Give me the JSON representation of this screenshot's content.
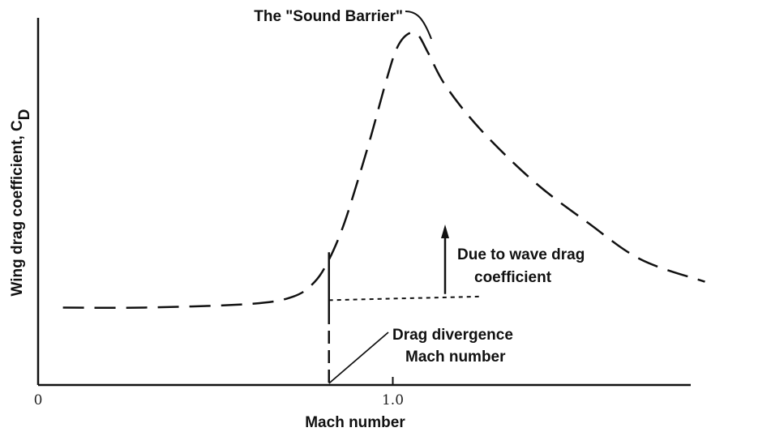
{
  "chart_data": {
    "type": "line",
    "title": "",
    "xlabel": "Mach number",
    "ylabel": "Wing drag coefficient, C",
    "ylabel_subscript": "D",
    "x_ticks": [
      {
        "value": 0,
        "label": "0"
      },
      {
        "value": 1.0,
        "label": "1.0"
      }
    ],
    "xlim": [
      0,
      1.84
    ],
    "ylim": [
      0,
      1.0
    ],
    "grid": false,
    "y_ticks_shown": false,
    "series": [
      {
        "style": "long-dashed",
        "x": [
          0.07,
          0.3,
          0.6,
          0.72,
          0.78,
          0.82,
          0.86,
          0.9,
          0.94,
          0.98,
          1.01,
          1.04,
          1.07,
          1.1,
          1.15,
          1.25,
          1.4,
          1.55,
          1.7,
          1.88
        ],
        "y": [
          0.21,
          0.21,
          0.22,
          0.24,
          0.28,
          0.34,
          0.43,
          0.55,
          0.68,
          0.82,
          0.91,
          0.95,
          0.95,
          0.9,
          0.81,
          0.69,
          0.55,
          0.44,
          0.34,
          0.28
        ]
      },
      {
        "style": "dotted",
        "x": [
          0.82,
          1.25
        ],
        "y": [
          0.23,
          0.24
        ]
      }
    ],
    "drag_divergence_mach": 0.82,
    "annotations": {
      "peak": "The \"Sound Barrier\"",
      "wave_drag_line1": "Due to wave drag",
      "wave_drag_line2": "coefficient",
      "divergence_line1": "Drag divergence",
      "divergence_line2": "Mach number"
    },
    "colors": {
      "ink": "#111111",
      "background": "#ffffff"
    }
  }
}
